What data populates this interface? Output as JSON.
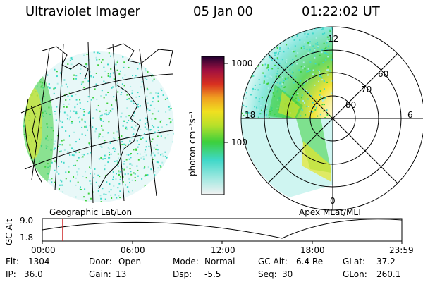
{
  "header": {
    "instrument": "Ultraviolet Imager",
    "date": "05 Jan 00",
    "time": "01:22:02 UT"
  },
  "colors": {
    "accent_green": "#3ccf3c",
    "accent_cyan": "#3fd8c8",
    "accent_yellow": "#e6e62a",
    "time_marker": "#cc2222"
  },
  "left_panel": {
    "label": "Geographic Lat/Lon"
  },
  "right_panel": {
    "label": "Apex  MLat/MLT",
    "mlt_labels": {
      "top": "12",
      "left": "18",
      "right": "6",
      "bottom": "0"
    },
    "lat_labels": [
      "60",
      "70",
      "80"
    ]
  },
  "colorbar": {
    "unit": "photon cm⁻²s⁻¹",
    "tick_labels": [
      "1000",
      "100"
    ]
  },
  "altitude_plot": {
    "ylabel": "GC Alt",
    "y_ticks": [
      "9.0",
      "1.8"
    ],
    "x_ticks": [
      "00:00",
      "06:00",
      "12:00",
      "18:00",
      "23:59"
    ]
  },
  "info": [
    [
      {
        "label": "Flt:",
        "value": "1304"
      },
      {
        "label": "Door:",
        "value": "Open"
      },
      {
        "label": "Mode:",
        "value": "Normal"
      },
      {
        "label": "GC Alt:",
        "value": "6.4 Re"
      },
      {
        "label": "GLat:",
        "value": "37.2"
      }
    ],
    [
      {
        "label": "IP:",
        "value": "36.0"
      },
      {
        "label": "Gain:",
        "value": "13"
      },
      {
        "label": "Dsp:",
        "value": "-5.5"
      },
      {
        "label": "Seq:",
        "value": "30"
      },
      {
        "label": "GLon:",
        "value": "260.1"
      }
    ]
  ]
}
